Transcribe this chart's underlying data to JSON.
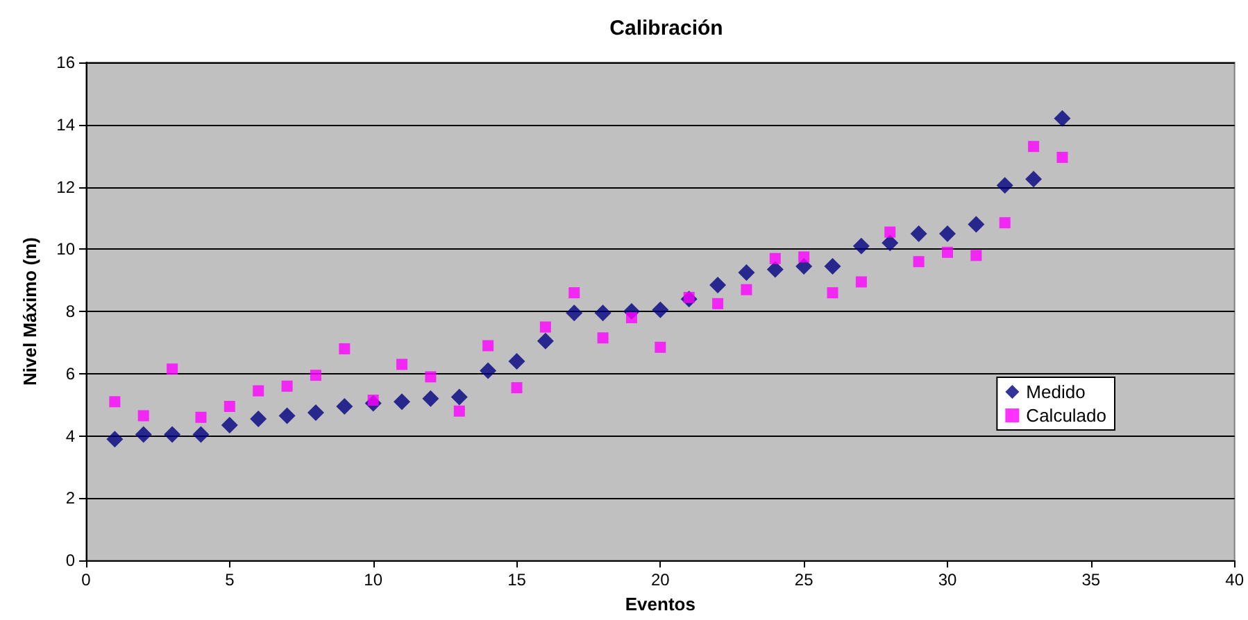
{
  "chart_data": {
    "type": "scatter",
    "title": "Calibración",
    "xlabel": "Eventos",
    "ylabel": "Nivel Máximo (m)",
    "x": [
      1,
      2,
      3,
      4,
      5,
      6,
      7,
      8,
      9,
      10,
      11,
      12,
      13,
      14,
      15,
      16,
      17,
      18,
      19,
      20,
      21,
      22,
      23,
      24,
      25,
      26,
      27,
      28,
      29,
      30,
      31,
      32,
      33,
      34
    ],
    "series": [
      {
        "name": "Medido",
        "color": "#000080",
        "marker": "diamond",
        "values": [
          3.9,
          4.05,
          4.05,
          4.05,
          4.35,
          4.55,
          4.65,
          4.75,
          4.95,
          5.05,
          5.1,
          5.2,
          5.25,
          6.1,
          6.4,
          7.05,
          7.95,
          7.95,
          8.0,
          8.05,
          8.4,
          8.85,
          9.25,
          9.35,
          9.45,
          9.45,
          10.1,
          10.2,
          10.5,
          10.5,
          10.8,
          12.05,
          12.25,
          14.2
        ]
      },
      {
        "name": "Calculado",
        "color": "#ff00ff",
        "marker": "square",
        "values": [
          5.1,
          4.65,
          6.15,
          4.6,
          4.95,
          5.45,
          5.6,
          5.95,
          6.8,
          5.15,
          6.3,
          5.9,
          4.8,
          6.9,
          5.55,
          7.5,
          8.6,
          7.15,
          7.8,
          6.85,
          8.45,
          8.25,
          8.7,
          9.7,
          9.75,
          8.6,
          8.95,
          10.55,
          9.6,
          9.9,
          9.8,
          10.85,
          13.3,
          12.95
        ]
      }
    ],
    "xlim": [
      0,
      40
    ],
    "xticks": [
      0,
      5,
      10,
      15,
      20,
      25,
      30,
      35,
      40
    ],
    "ylim": [
      0,
      16
    ],
    "yticks": [
      0,
      2,
      4,
      6,
      8,
      10,
      12,
      14,
      16
    ],
    "grid": "y",
    "legend": "right"
  }
}
